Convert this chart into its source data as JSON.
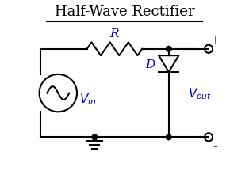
{
  "title": "Half-Wave Rectifier",
  "title_fontsize": 13,
  "title_color": "black",
  "label_color": "#0000cc",
  "line_color": "black",
  "bg_color": "white",
  "Vin_label": "$V_{in}$",
  "Vout_label": "$V_{out}$",
  "R_label": "R",
  "D_label": "D",
  "plus_label": "+",
  "minus_label": "-",
  "figsize": [
    3.14,
    2.26
  ],
  "dpi": 100
}
